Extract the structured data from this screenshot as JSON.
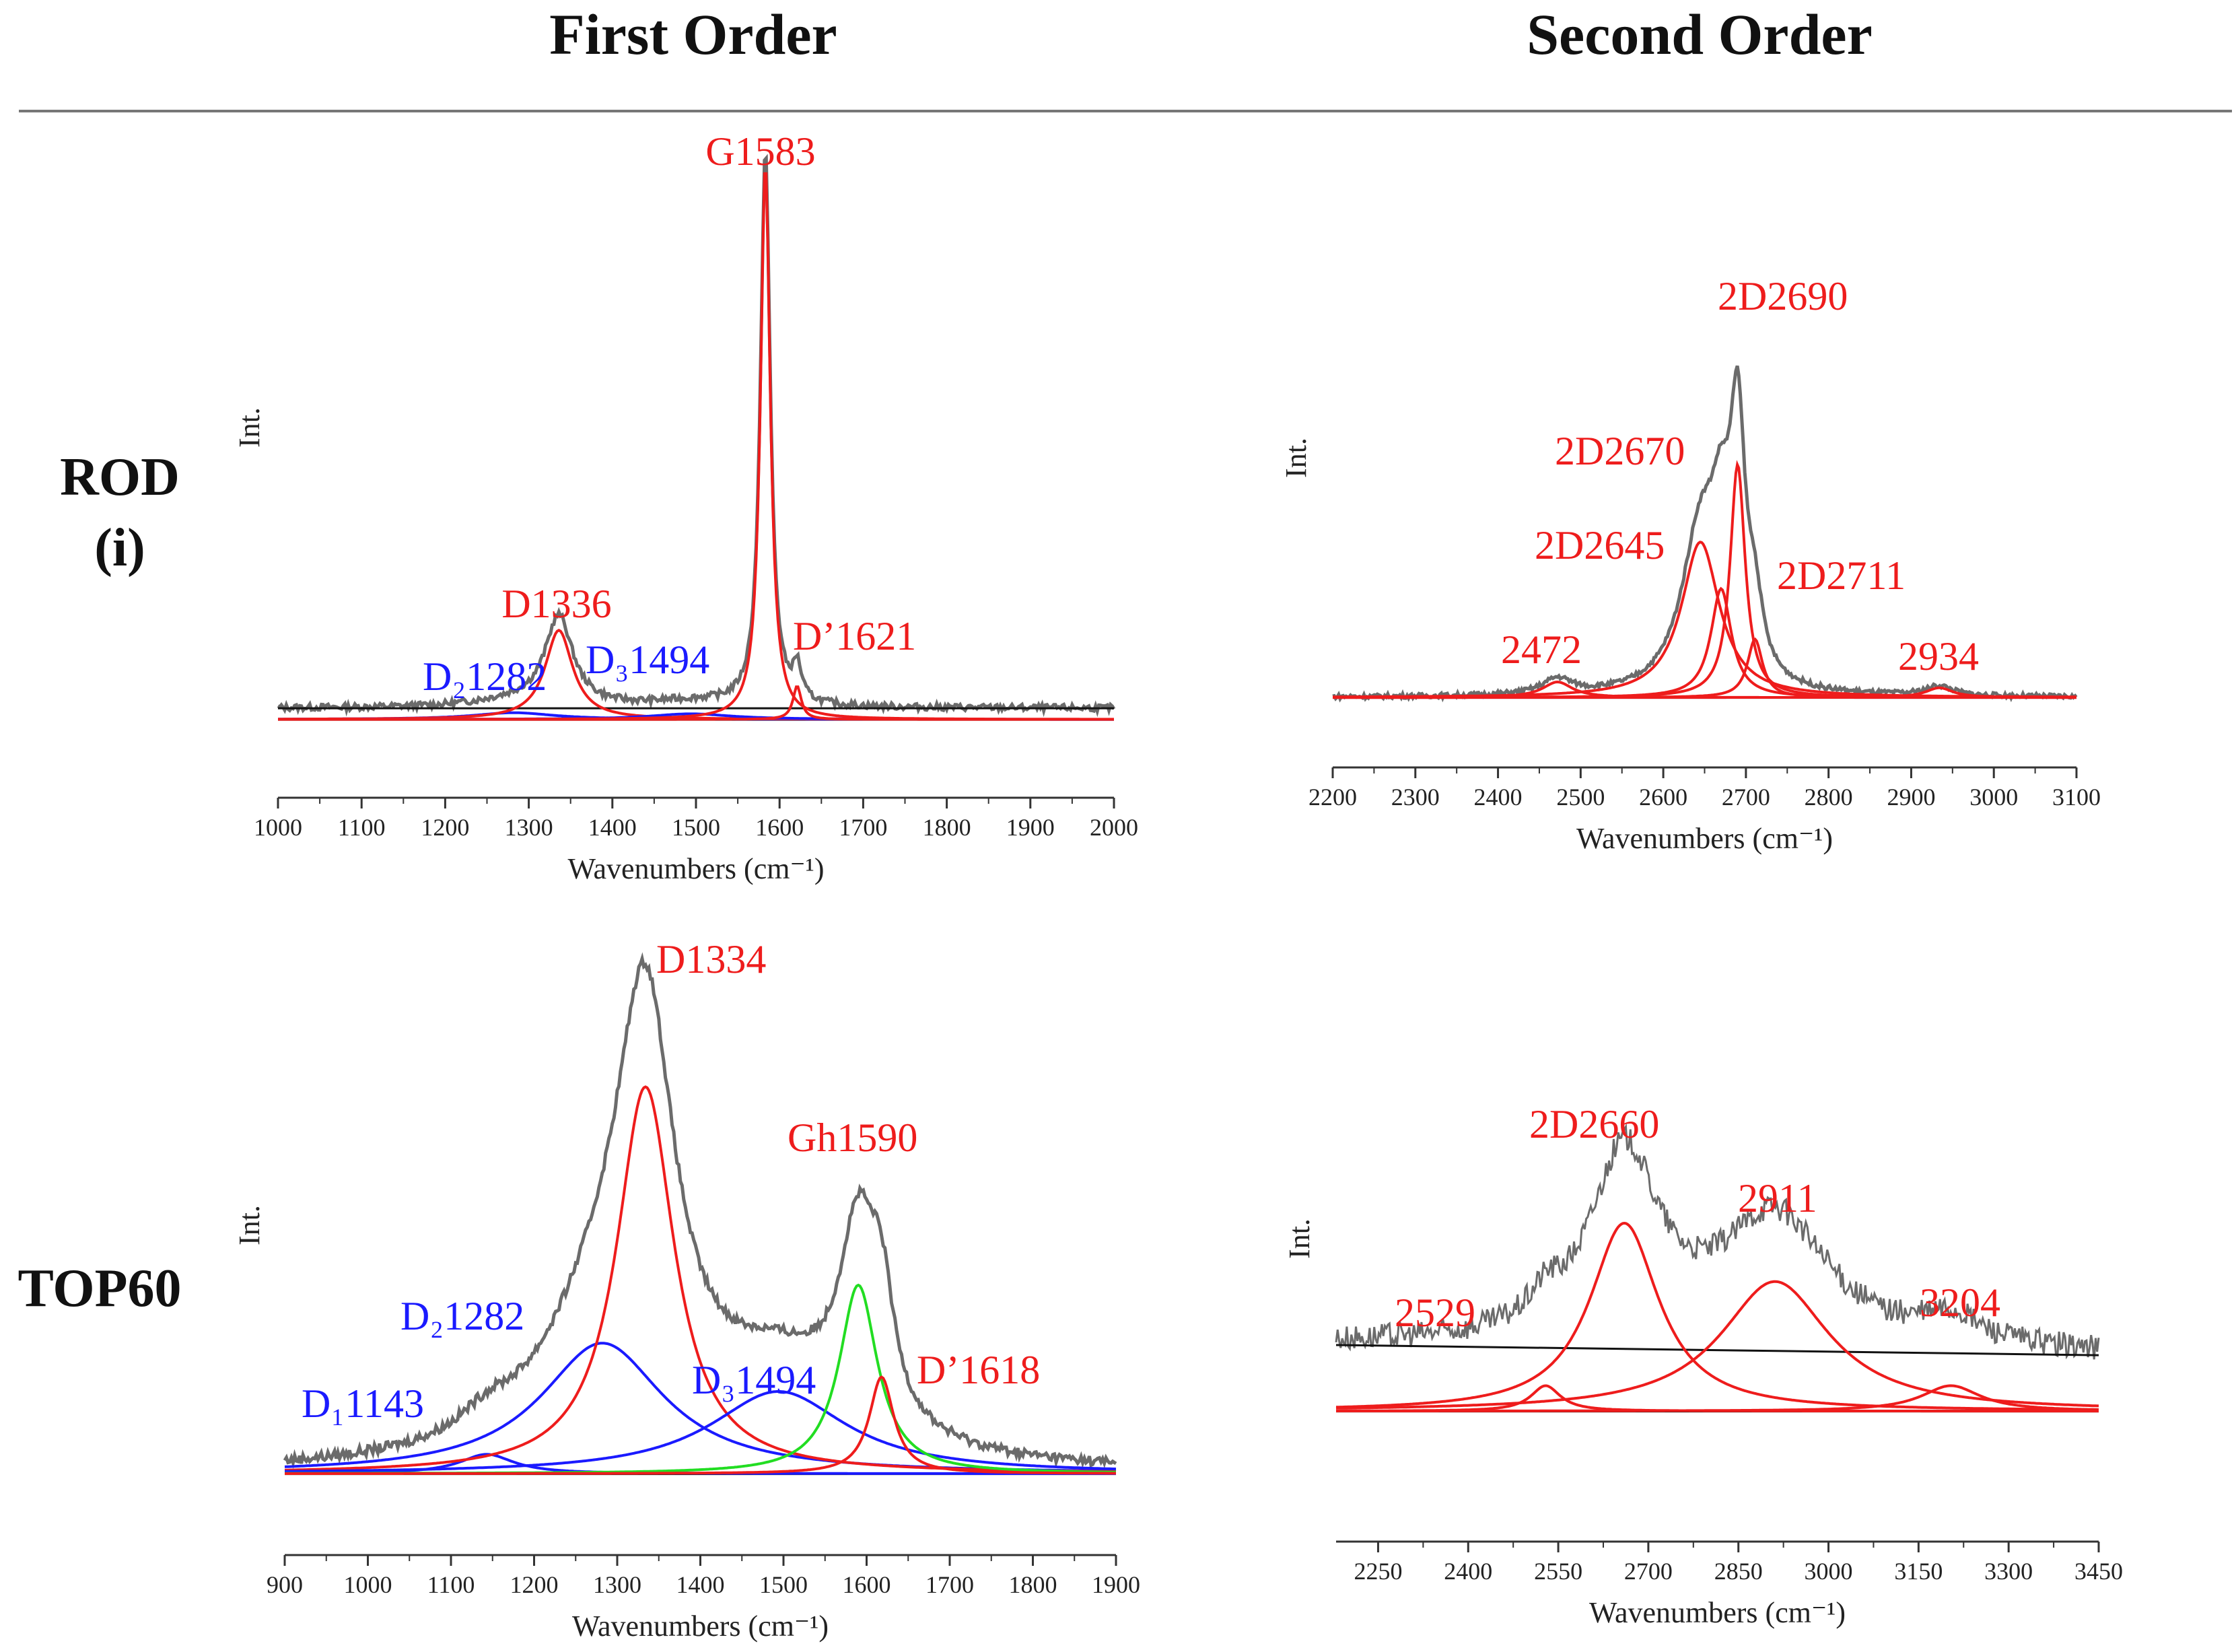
{
  "header": {
    "first_order": "First Order",
    "second_order": "Second Order"
  },
  "rows": [
    {
      "label_line1": "ROD",
      "label_line2": "(i)"
    },
    {
      "label_line1": "TOP60",
      "label_line2": ""
    }
  ],
  "colors": {
    "red": "#ee1c1c",
    "blue": "#1a1aff",
    "green": "#22dd22",
    "gray": "#6b6b6b",
    "black": "#111111",
    "lightblue": "#6aa6e0"
  },
  "chart_data": [
    {
      "id": "rod-first",
      "type": "line",
      "title": "ROD (i) First Order",
      "xlabel": "Wavenumbers (cm⁻¹)",
      "ylabel": "Int.",
      "xlim": [
        1000,
        2000
      ],
      "ylim": [
        -0.05,
        1.05
      ],
      "xticks": [
        1000,
        1100,
        1200,
        1300,
        1400,
        1500,
        1600,
        1700,
        1800,
        1900,
        2000
      ],
      "baseline": 0,
      "offset_line": [
        0.02,
        0.02
      ],
      "peaks": [
        {
          "name": "D2",
          "label": "D₂1282",
          "color": "blue",
          "center": 1282,
          "width": 60,
          "height": 0.012
        },
        {
          "name": "D",
          "label": "D1336",
          "color": "red",
          "center": 1336,
          "width": 20,
          "height": 0.16
        },
        {
          "name": "D3",
          "label": "D₃1494",
          "color": "blue",
          "center": 1494,
          "width": 60,
          "height": 0.01
        },
        {
          "name": "G",
          "label": "G1583",
          "color": "red",
          "center": 1583,
          "width": 7,
          "height": 1.0
        },
        {
          "name": "D'",
          "label": "D’1621",
          "color": "red",
          "center": 1621,
          "width": 6,
          "height": 0.06
        }
      ]
    },
    {
      "id": "rod-second",
      "type": "line",
      "title": "ROD (i) Second Order",
      "xlabel": "Wavenumbers (cm⁻¹)",
      "ylabel": "Int.",
      "xlim": [
        2200,
        3100
      ],
      "ylim": [
        -0.05,
        1.05
      ],
      "xticks": [
        2200,
        2300,
        2400,
        2500,
        2600,
        2700,
        2800,
        2900,
        3000,
        3100
      ],
      "baseline": 0,
      "offset_line": [
        0.0,
        0.0
      ],
      "peaks": [
        {
          "name": "2472",
          "label": "2472",
          "color": "red",
          "center": 2472,
          "width": 22,
          "height": 0.04
        },
        {
          "name": "2D2645",
          "label": "2D2645",
          "color": "red",
          "center": 2645,
          "width": 28,
          "height": 0.4
        },
        {
          "name": "2D2670",
          "label": "2D2670",
          "color": "red",
          "center": 2670,
          "width": 15,
          "height": 0.28
        },
        {
          "name": "2D2690",
          "label": "2D2690",
          "color": "red",
          "center": 2690,
          "width": 11,
          "height": 0.6
        },
        {
          "name": "2D2711",
          "label": "2D2711",
          "color": "red",
          "center": 2711,
          "width": 11,
          "height": 0.15
        },
        {
          "name": "2934",
          "label": "2934",
          "color": "red",
          "center": 2934,
          "width": 20,
          "height": 0.025
        }
      ]
    },
    {
      "id": "top60-first",
      "type": "line",
      "title": "TOP60 First Order",
      "xlabel": "Wavenumbers (cm⁻¹)",
      "ylabel": "Int.",
      "xlim": [
        900,
        1900
      ],
      "ylim": [
        -0.05,
        1.05
      ],
      "xticks": [
        900,
        1000,
        1100,
        1200,
        1300,
        1400,
        1500,
        1600,
        1700,
        1800,
        1900
      ],
      "baseline": 0,
      "offset_line": [
        0.0,
        0.0
      ],
      "peaks": [
        {
          "name": "D1",
          "label": "D₁1143",
          "color": "blue",
          "center": 1143,
          "width": 40,
          "height": 0.04
        },
        {
          "name": "D2",
          "label": "D₂1282",
          "color": "blue",
          "center": 1282,
          "width": 90,
          "height": 0.27
        },
        {
          "name": "D",
          "label": "D1334",
          "color": "red",
          "center": 1334,
          "width": 42,
          "height": 0.8
        },
        {
          "name": "D3",
          "label": "D₃1494",
          "color": "blue",
          "center": 1494,
          "width": 100,
          "height": 0.17
        },
        {
          "name": "Gh",
          "label": "Gh1590",
          "color": "green",
          "center": 1590,
          "width": 28,
          "height": 0.39
        },
        {
          "name": "D'",
          "label": "D’1618",
          "color": "red",
          "center": 1618,
          "width": 18,
          "height": 0.2
        }
      ]
    },
    {
      "id": "top60-second",
      "type": "line",
      "title": "TOP60 Second Order",
      "xlabel": "Wavenumbers (cm⁻¹)",
      "ylabel": "Int.",
      "xlim": [
        2180,
        3450
      ],
      "ylim": [
        -0.05,
        1.05
      ],
      "xticks": [
        2250,
        2400,
        2550,
        2700,
        2850,
        3000,
        3150,
        3300,
        3450
      ],
      "baseline": 0,
      "offset_line": [
        0.26,
        0.22
      ],
      "peaks": [
        {
          "name": "2529",
          "label": "2529",
          "color": "red",
          "center": 2529,
          "width": 30,
          "height": 0.1
        },
        {
          "name": "2D2660",
          "label": "2D2660",
          "color": "red",
          "center": 2660,
          "width": 70,
          "height": 0.74
        },
        {
          "name": "2911",
          "label": "2911",
          "color": "red",
          "center": 2911,
          "width": 110,
          "height": 0.51
        },
        {
          "name": "3204",
          "label": "3204",
          "color": "red",
          "center": 3204,
          "width": 60,
          "height": 0.1
        }
      ]
    }
  ]
}
